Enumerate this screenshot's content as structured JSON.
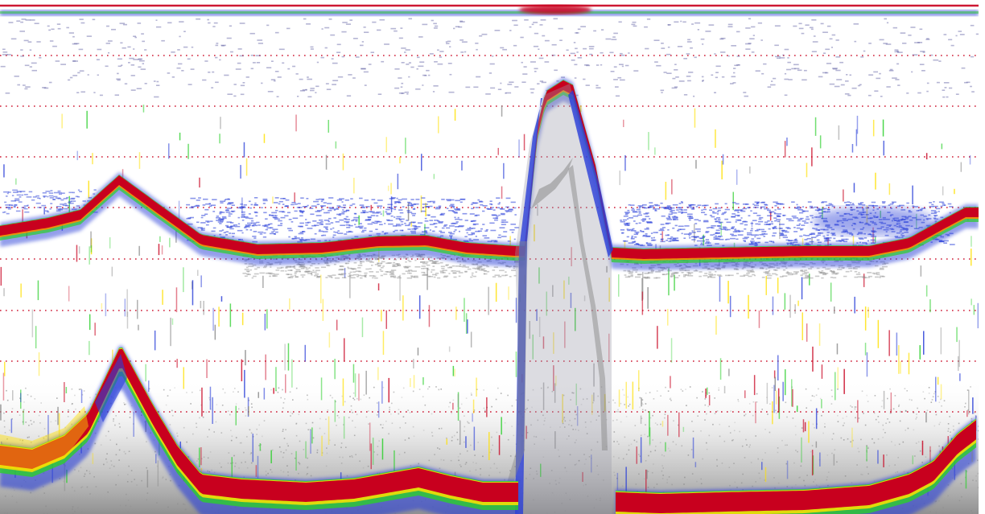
{
  "echogram": {
    "colors": {
      "background": "#ffffff",
      "strong_echo": "#c8001e",
      "orange_echo": "#ff8a00",
      "yellow_echo": "#ffe000",
      "green_echo": "#2bcf2b",
      "blue_echo": "#2a3fd8",
      "weak_echo": "#8a8a8a",
      "depth_line": "#c8001e"
    },
    "depth_line_count": 9,
    "bottom_traces": [
      {
        "name": "upper-bottom-trace",
        "style": "strong"
      },
      {
        "name": "lower-bottom-trace",
        "style": "strong-wide"
      }
    ]
  }
}
